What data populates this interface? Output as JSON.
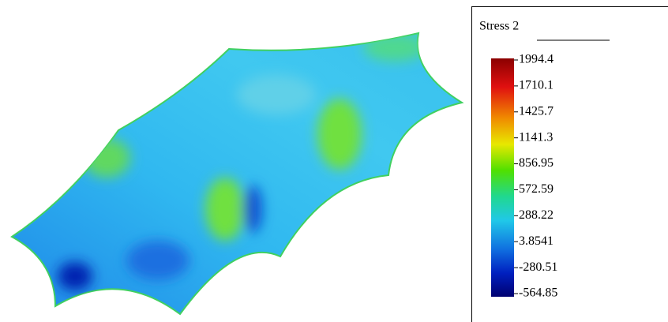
{
  "legend": {
    "title": "Stress 2",
    "labels": [
      "1994.4",
      "1710.1",
      "1425.7",
      "1141.3",
      "856.95",
      "572.59",
      "288.22",
      "3.8541",
      "-280.51",
      "-564.85"
    ]
  }
}
